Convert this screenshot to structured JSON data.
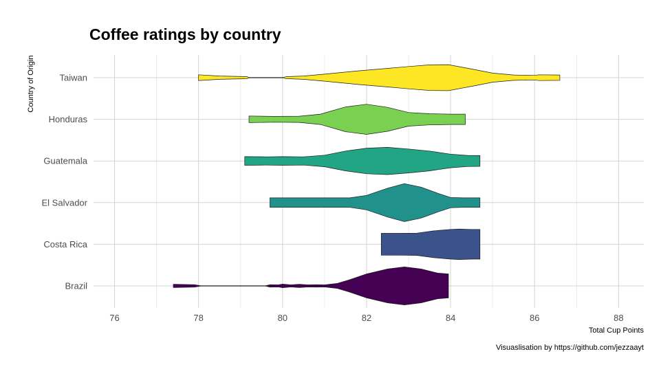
{
  "chart_data": {
    "type": "violin",
    "title": "Coffee ratings by country",
    "xlabel": "Total Cup Points",
    "ylabel": "Country of Origin",
    "caption": "Visuaslisation by https://github.com/jezzaayt",
    "xlim": [
      75.5,
      88.6
    ],
    "xticks": [
      76,
      78,
      80,
      82,
      84,
      86,
      88
    ],
    "grid": true,
    "orientation": "horizontal",
    "categories": [
      "Brazil",
      "Costa Rica",
      "El Salvador",
      "Guatemala",
      "Honduras",
      "Taiwan"
    ],
    "series": [
      {
        "category": "Brazil",
        "color": "#440154",
        "min": 77.4,
        "max": 83.95,
        "density": [
          [
            77.4,
            0.08
          ],
          [
            77.6,
            0.07
          ],
          [
            77.9,
            0.06
          ],
          [
            78.05,
            0.01
          ],
          [
            79.0,
            0.01
          ],
          [
            79.6,
            0.01
          ],
          [
            79.7,
            0.06
          ],
          [
            79.9,
            0.05
          ],
          [
            80.0,
            0.09
          ],
          [
            80.2,
            0.05
          ],
          [
            80.4,
            0.08
          ],
          [
            80.6,
            0.05
          ],
          [
            80.8,
            0.06
          ],
          [
            81.0,
            0.05
          ],
          [
            81.3,
            0.12
          ],
          [
            81.6,
            0.3
          ],
          [
            82.0,
            0.58
          ],
          [
            82.5,
            0.82
          ],
          [
            82.9,
            0.92
          ],
          [
            83.3,
            0.82
          ],
          [
            83.7,
            0.62
          ],
          [
            83.95,
            0.58
          ]
        ]
      },
      {
        "category": "Costa Rica",
        "color": "#3b528b",
        "min": 82.35,
        "max": 84.7,
        "density": [
          [
            82.35,
            0.53
          ],
          [
            82.8,
            0.53
          ],
          [
            83.2,
            0.54
          ],
          [
            83.6,
            0.65
          ],
          [
            84.0,
            0.72
          ],
          [
            84.2,
            0.74
          ],
          [
            84.5,
            0.72
          ],
          [
            84.7,
            0.72
          ]
        ]
      },
      {
        "category": "El Salvador",
        "color": "#21918c",
        "min": 79.7,
        "max": 84.7,
        "density": [
          [
            79.7,
            0.23
          ],
          [
            80.5,
            0.23
          ],
          [
            81.0,
            0.23
          ],
          [
            81.6,
            0.23
          ],
          [
            82.0,
            0.35
          ],
          [
            82.5,
            0.7
          ],
          [
            82.9,
            0.92
          ],
          [
            83.3,
            0.75
          ],
          [
            83.7,
            0.45
          ],
          [
            84.0,
            0.25
          ],
          [
            84.3,
            0.23
          ],
          [
            84.7,
            0.23
          ]
        ]
      },
      {
        "category": "Guatemala",
        "color": "#21a585",
        "min": 79.1,
        "max": 84.7,
        "density": [
          [
            79.1,
            0.21
          ],
          [
            79.6,
            0.2
          ],
          [
            80.0,
            0.21
          ],
          [
            80.5,
            0.2
          ],
          [
            81.0,
            0.28
          ],
          [
            81.5,
            0.48
          ],
          [
            82.0,
            0.62
          ],
          [
            82.5,
            0.66
          ],
          [
            83.0,
            0.58
          ],
          [
            83.5,
            0.48
          ],
          [
            84.0,
            0.33
          ],
          [
            84.4,
            0.27
          ],
          [
            84.7,
            0.26
          ]
        ]
      },
      {
        "category": "Honduras",
        "color": "#7ad151",
        "min": 79.2,
        "max": 84.35,
        "density": [
          [
            79.2,
            0.16
          ],
          [
            79.8,
            0.14
          ],
          [
            80.4,
            0.15
          ],
          [
            80.9,
            0.25
          ],
          [
            81.5,
            0.6
          ],
          [
            82.0,
            0.73
          ],
          [
            82.5,
            0.58
          ],
          [
            83.0,
            0.33
          ],
          [
            83.5,
            0.27
          ],
          [
            84.0,
            0.25
          ],
          [
            84.35,
            0.25
          ]
        ]
      },
      {
        "category": "Taiwan",
        "color": "#fde725",
        "min": 78.0,
        "max": 86.6,
        "density": [
          [
            78.0,
            0.14
          ],
          [
            78.5,
            0.08
          ],
          [
            79.15,
            0.05
          ],
          [
            79.2,
            0.01
          ],
          [
            80.0,
            0.01
          ],
          [
            80.1,
            0.05
          ],
          [
            80.5,
            0.08
          ],
          [
            81.0,
            0.17
          ],
          [
            81.8,
            0.33
          ],
          [
            82.5,
            0.45
          ],
          [
            83.0,
            0.54
          ],
          [
            83.5,
            0.62
          ],
          [
            83.95,
            0.63
          ],
          [
            84.5,
            0.42
          ],
          [
            85.0,
            0.22
          ],
          [
            85.5,
            0.13
          ],
          [
            86.0,
            0.11
          ],
          [
            86.1,
            0.14
          ],
          [
            86.6,
            0.13
          ]
        ]
      }
    ]
  }
}
